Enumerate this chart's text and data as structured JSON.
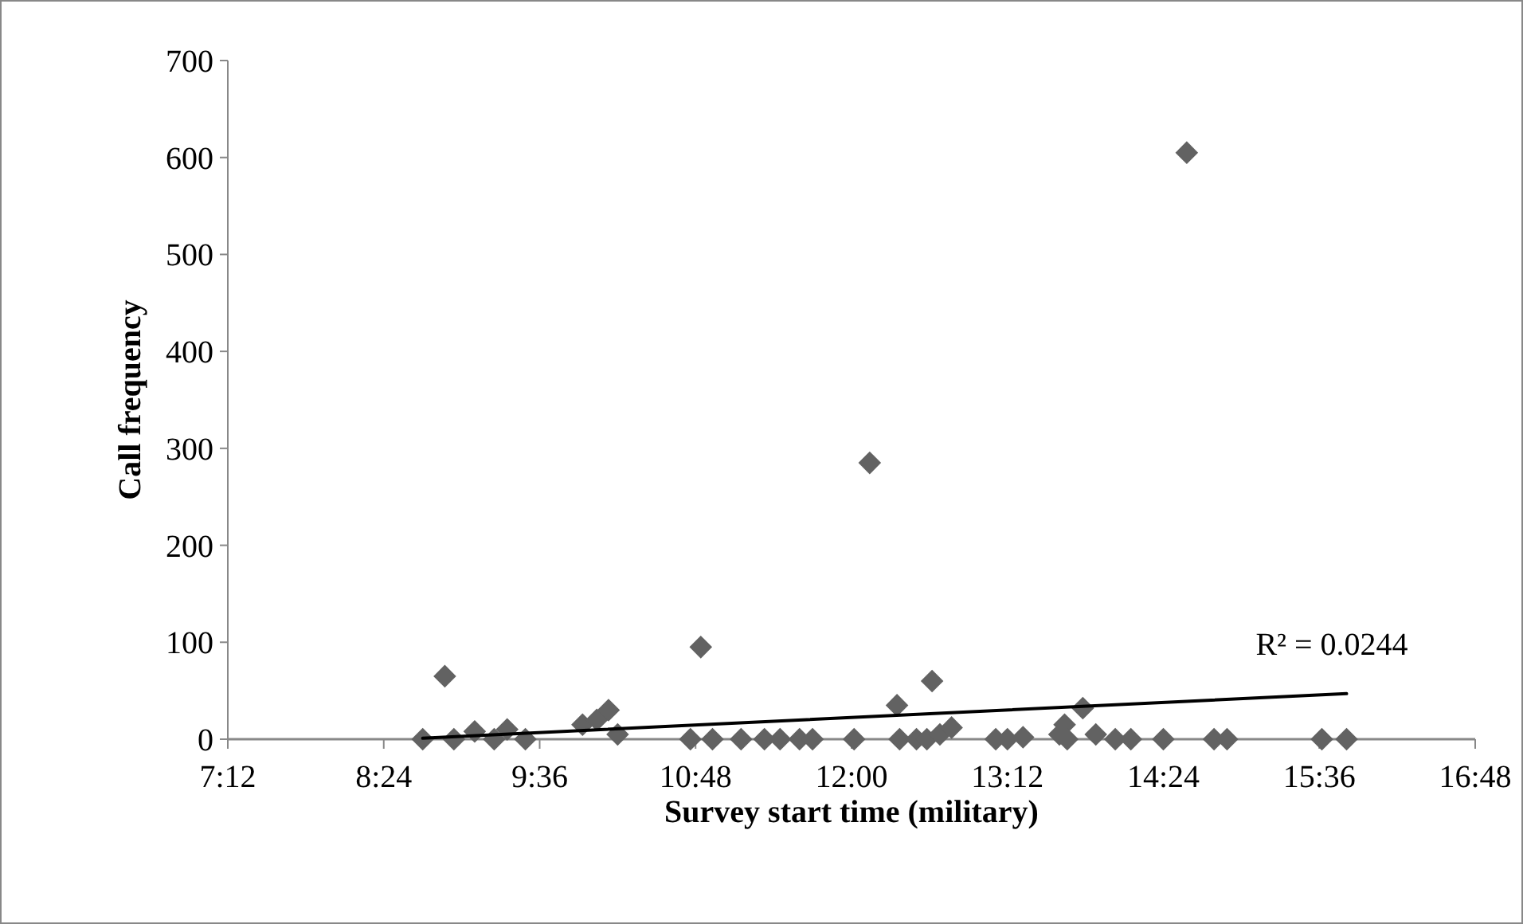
{
  "chart_data": {
    "type": "scatter",
    "xlabel": "Survey start time (military)",
    "ylabel": "Call frequency",
    "marker": "diamond",
    "grid": false,
    "xlim": [
      7.2,
      16.8
    ],
    "xticks": [
      {
        "value": 7.2,
        "label": "7:12"
      },
      {
        "value": 8.4,
        "label": "8:24"
      },
      {
        "value": 9.6,
        "label": "9:36"
      },
      {
        "value": 10.8,
        "label": "10:48"
      },
      {
        "value": 12.0,
        "label": "12:00"
      },
      {
        "value": 13.2,
        "label": "13:12"
      },
      {
        "value": 14.4,
        "label": "14:24"
      },
      {
        "value": 15.6,
        "label": "15:36"
      },
      {
        "value": 16.8,
        "label": "16:48"
      }
    ],
    "ylim": [
      0,
      700
    ],
    "yticks": [
      0,
      100,
      200,
      300,
      400,
      500,
      600,
      700
    ],
    "series": [
      {
        "color": "#626262",
        "x": [
          8.7,
          8.87,
          8.94,
          9.1,
          9.25,
          9.35,
          9.49,
          9.93,
          10.04,
          10.13,
          10.2,
          10.76,
          10.84,
          10.93,
          11.15,
          11.33,
          11.45,
          11.6,
          11.7,
          12.02,
          12.14,
          12.35,
          12.37,
          12.5,
          12.58,
          12.62,
          12.68,
          12.77,
          13.11,
          13.2,
          13.32,
          13.6,
          13.64,
          13.66,
          13.78,
          13.88,
          14.03,
          14.15,
          14.4,
          14.58,
          14.79,
          14.89,
          15.62,
          15.81
        ],
        "values": [
          0,
          65,
          0,
          8,
          0,
          10,
          0,
          15,
          20,
          30,
          5,
          0,
          95,
          0,
          0,
          0,
          0,
          0,
          0,
          0,
          285,
          35,
          0,
          0,
          0,
          60,
          5,
          12,
          0,
          0,
          2,
          5,
          15,
          0,
          32,
          5,
          0,
          0,
          0,
          605,
          0,
          0,
          0,
          0
        ]
      },
      {
        "type": "line",
        "color": "#000000",
        "marker": "none",
        "x": [
          8.7,
          15.81
        ],
        "values": [
          1,
          47
        ]
      }
    ],
    "annotations": [
      "R² = 0.0244"
    ]
  }
}
